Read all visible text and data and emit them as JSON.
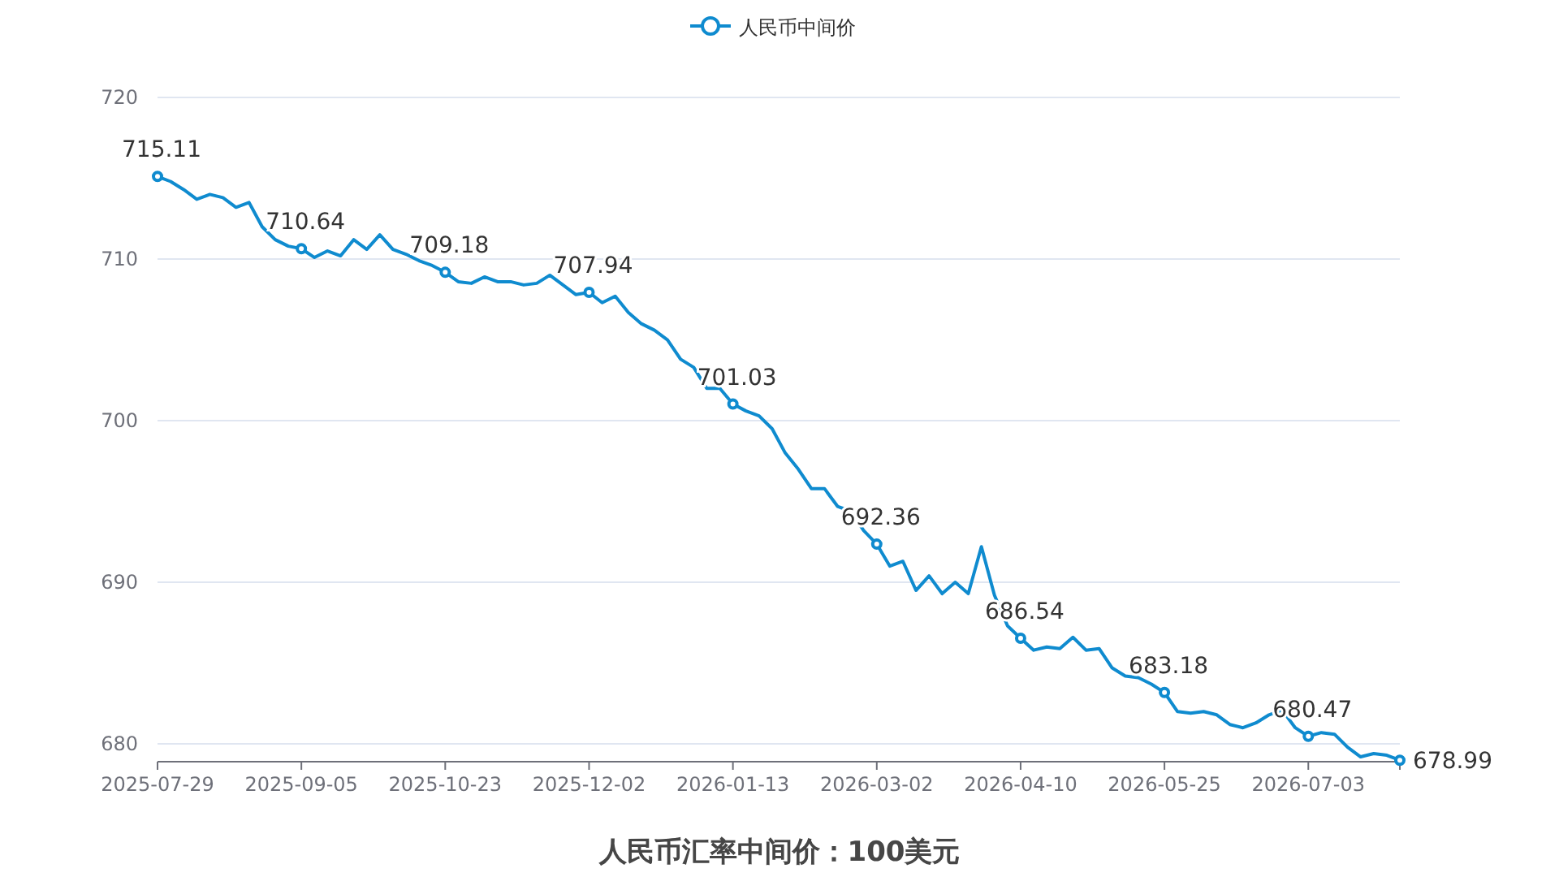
{
  "chart_data": {
    "type": "line",
    "title": "人民币汇率中间价：100美元",
    "categories": [
      "2025-07-29",
      null,
      null,
      null,
      null,
      null,
      null,
      null,
      null,
      null,
      null,
      "2025-09-05",
      null,
      null,
      null,
      null,
      null,
      null,
      null,
      null,
      null,
      null,
      "2025-10-23",
      null,
      null,
      null,
      null,
      null,
      null,
      null,
      null,
      null,
      null,
      "2025-12-02",
      null,
      null,
      null,
      null,
      null,
      null,
      null,
      null,
      null,
      null,
      "2026-01-13",
      null,
      null,
      null,
      null,
      null,
      null,
      null,
      null,
      null,
      null,
      "2026-03-02",
      null,
      null,
      null,
      null,
      null,
      null,
      null,
      null,
      null,
      null,
      "2026-04-10",
      null,
      null,
      null,
      null,
      null,
      null,
      null,
      null,
      null,
      null,
      "2026-05-25",
      null,
      null,
      null,
      null,
      null,
      null,
      null,
      null,
      null,
      null,
      "2026-07-03",
      null,
      null,
      null,
      null,
      null,
      null,
      null
    ],
    "series": [
      {
        "name": "人民币中间价",
        "color": "#0f8bcf",
        "values": [
          715.11,
          714.8,
          714.3,
          713.7,
          714.0,
          713.8,
          713.2,
          713.5,
          712.0,
          711.2,
          710.8,
          710.64,
          710.1,
          710.5,
          710.2,
          711.2,
          710.6,
          711.5,
          710.6,
          710.3,
          709.9,
          709.6,
          709.18,
          708.6,
          708.5,
          708.9,
          708.6,
          708.6,
          708.4,
          708.5,
          709.0,
          708.4,
          707.8,
          707.94,
          707.3,
          707.7,
          706.7,
          706.0,
          705.6,
          705.0,
          703.8,
          703.3,
          702.0,
          702.0,
          701.03,
          700.6,
          700.3,
          699.5,
          698.0,
          697.0,
          695.8,
          695.8,
          694.7,
          694.4,
          693.2,
          692.36,
          691.0,
          691.3,
          689.5,
          690.4,
          689.3,
          690.0,
          689.3,
          692.2,
          689.2,
          687.3,
          686.54,
          685.8,
          686.0,
          685.9,
          686.6,
          685.8,
          685.9,
          684.7,
          684.2,
          684.1,
          683.7,
          683.18,
          682.0,
          681.9,
          682.0,
          681.8,
          681.2,
          681.0,
          681.3,
          681.8,
          682.1,
          681.0,
          680.47,
          680.7,
          680.6,
          679.8,
          679.2,
          679.4,
          679.3,
          678.99
        ],
        "value_labels": [
          "715.11",
          null,
          null,
          null,
          null,
          null,
          null,
          null,
          null,
          null,
          null,
          "710.64",
          null,
          null,
          null,
          null,
          null,
          null,
          null,
          null,
          null,
          null,
          "709.18",
          null,
          null,
          null,
          null,
          null,
          null,
          null,
          null,
          null,
          null,
          "707.94",
          null,
          null,
          null,
          null,
          null,
          null,
          null,
          null,
          null,
          null,
          "701.03",
          null,
          null,
          null,
          null,
          null,
          null,
          null,
          null,
          null,
          null,
          "692.36",
          null,
          null,
          null,
          null,
          null,
          null,
          null,
          null,
          null,
          null,
          "686.54",
          null,
          null,
          null,
          null,
          null,
          null,
          null,
          null,
          null,
          null,
          "683.18",
          null,
          null,
          null,
          null,
          null,
          null,
          null,
          null,
          null,
          null,
          "680.47",
          null,
          null,
          null,
          null,
          null,
          null,
          "678.99"
        ]
      }
    ],
    "ylim": [
      678.9,
      720
    ],
    "yticks": [
      680,
      690,
      700,
      710,
      720
    ],
    "grid": "y",
    "legend": "top",
    "line_style": "solid"
  }
}
